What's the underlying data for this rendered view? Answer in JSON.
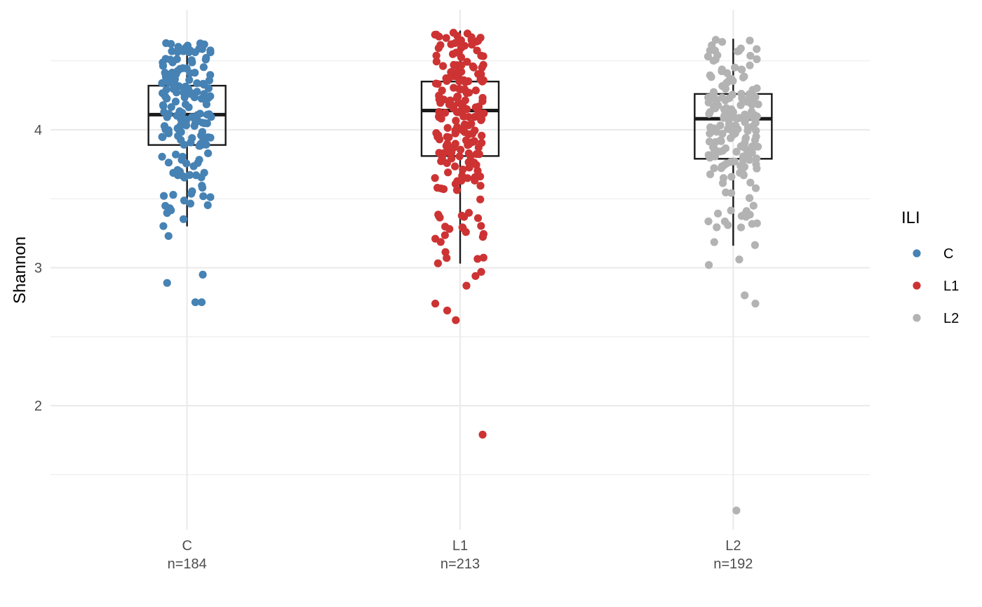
{
  "chart_data": {
    "type": "box-jitter",
    "ylabel": "Shannon",
    "yticks": [
      2,
      3,
      4
    ],
    "ylim": [
      1.1,
      4.87
    ],
    "grid": true,
    "legend": {
      "title": "ILI",
      "position": "right",
      "entries": [
        {
          "label": "C",
          "color": "#4682B4"
        },
        {
          "label": "L1",
          "color": "#CD3333"
        },
        {
          "label": "L2",
          "color": "#B3B3B3"
        }
      ]
    },
    "groups": [
      {
        "name": "C",
        "n_label": "n=184",
        "color": "#4682B4",
        "box": {
          "min": 3.3,
          "q1": 3.89,
          "median": 4.11,
          "q3": 4.32,
          "max": 4.63
        },
        "outliers": [
          2.95,
          2.89,
          2.75,
          2.75,
          3.23
        ]
      },
      {
        "name": "L1",
        "n_label": "n=213",
        "color": "#CD3333",
        "box": {
          "min": 3.03,
          "q1": 3.81,
          "median": 4.14,
          "q3": 4.35,
          "max": 4.72
        },
        "outliers": [
          2.97,
          2.94,
          2.87,
          2.74,
          2.69,
          2.62,
          1.79
        ]
      },
      {
        "name": "L2",
        "n_label": "n=192",
        "color": "#B3B3B3",
        "box": {
          "min": 3.16,
          "q1": 3.79,
          "median": 4.08,
          "q3": 4.26,
          "max": 4.66
        },
        "outliers": [
          3.06,
          3.02,
          2.8,
          2.74,
          1.24
        ]
      }
    ]
  }
}
